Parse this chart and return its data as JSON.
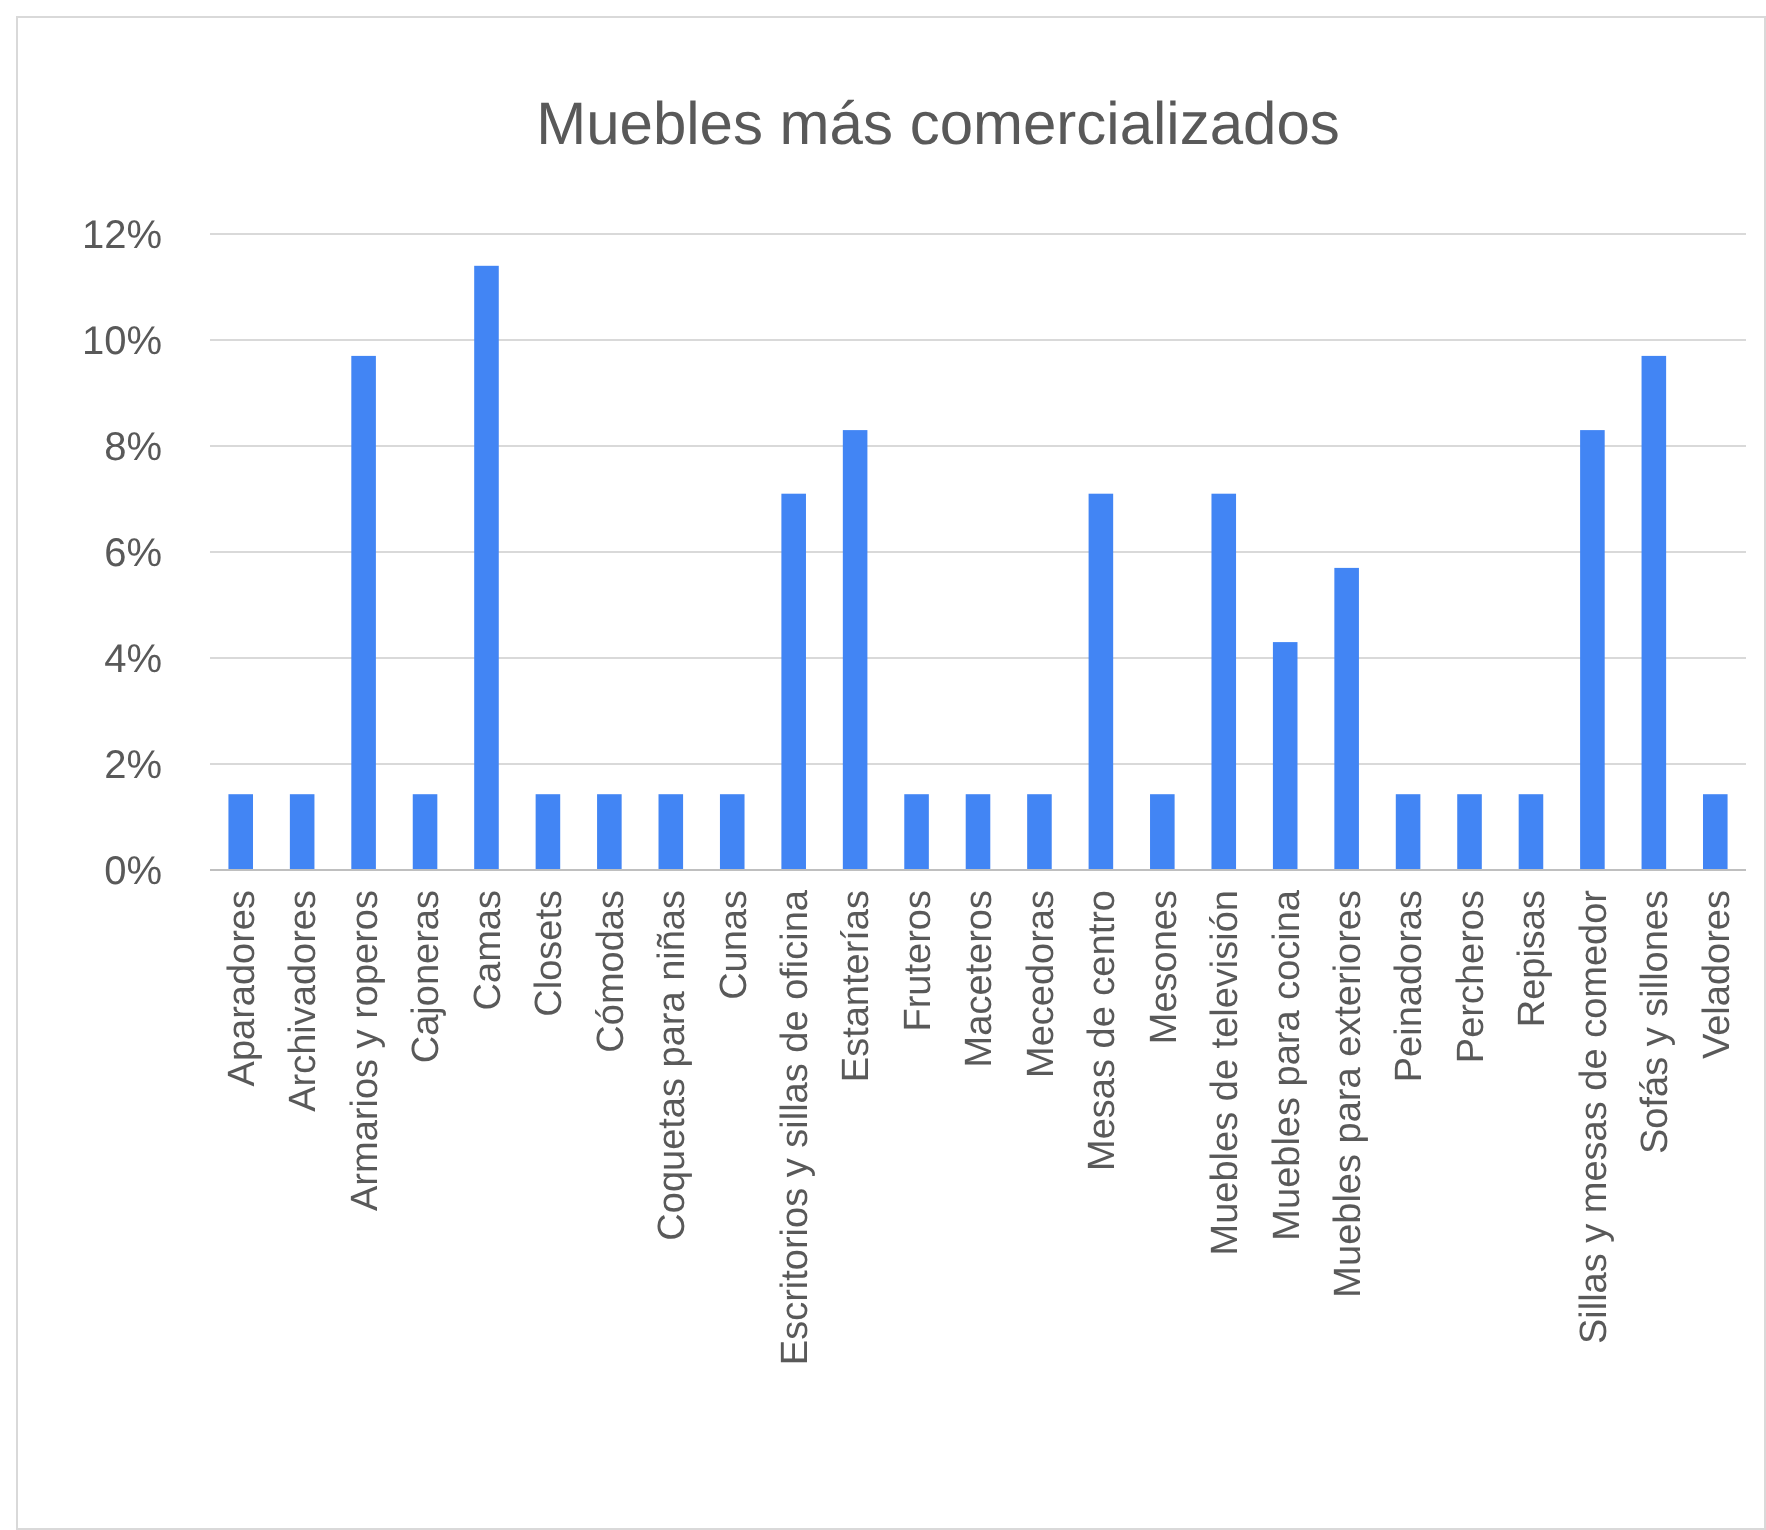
{
  "chart_data": {
    "type": "bar",
    "title": "Muebles más comercializados",
    "categories": [
      "Aparadores",
      "Archivadores",
      "Armarios y roperos",
      "Cajoneras",
      "Camas",
      "Closets",
      "Cómodas",
      "Coquetas para niñas",
      "Cunas",
      "Escritorios y sillas de oficina",
      "Estanterías",
      "Fruteros",
      "Maceteros",
      "Mecedoras",
      "Mesas de centro",
      "Mesones",
      "Muebles de televisión",
      "Muebles para cocina",
      "Muebles para exteriores",
      "Peinadoras",
      "Percheros",
      "Repisas",
      "Sillas y mesas de comedor",
      "Sofás y sillones",
      "Veladores"
    ],
    "values": [
      1.43,
      1.43,
      9.7,
      1.43,
      11.4,
      1.43,
      1.43,
      1.43,
      1.43,
      7.1,
      8.3,
      1.43,
      1.43,
      1.43,
      7.1,
      1.43,
      7.1,
      4.3,
      5.7,
      1.43,
      1.43,
      1.43,
      8.3,
      9.7,
      1.43
    ],
    "color": "#4285f4",
    "ylim": [
      0,
      12
    ],
    "yticks": [
      {
        "value": 0,
        "label": "0%"
      },
      {
        "value": 2,
        "label": "2%"
      },
      {
        "value": 4,
        "label": "4%"
      },
      {
        "value": 6,
        "label": "6%"
      },
      {
        "value": 8,
        "label": "8%"
      },
      {
        "value": 10,
        "label": "10%"
      },
      {
        "value": 12,
        "label": "12%"
      }
    ],
    "grid": "y"
  }
}
